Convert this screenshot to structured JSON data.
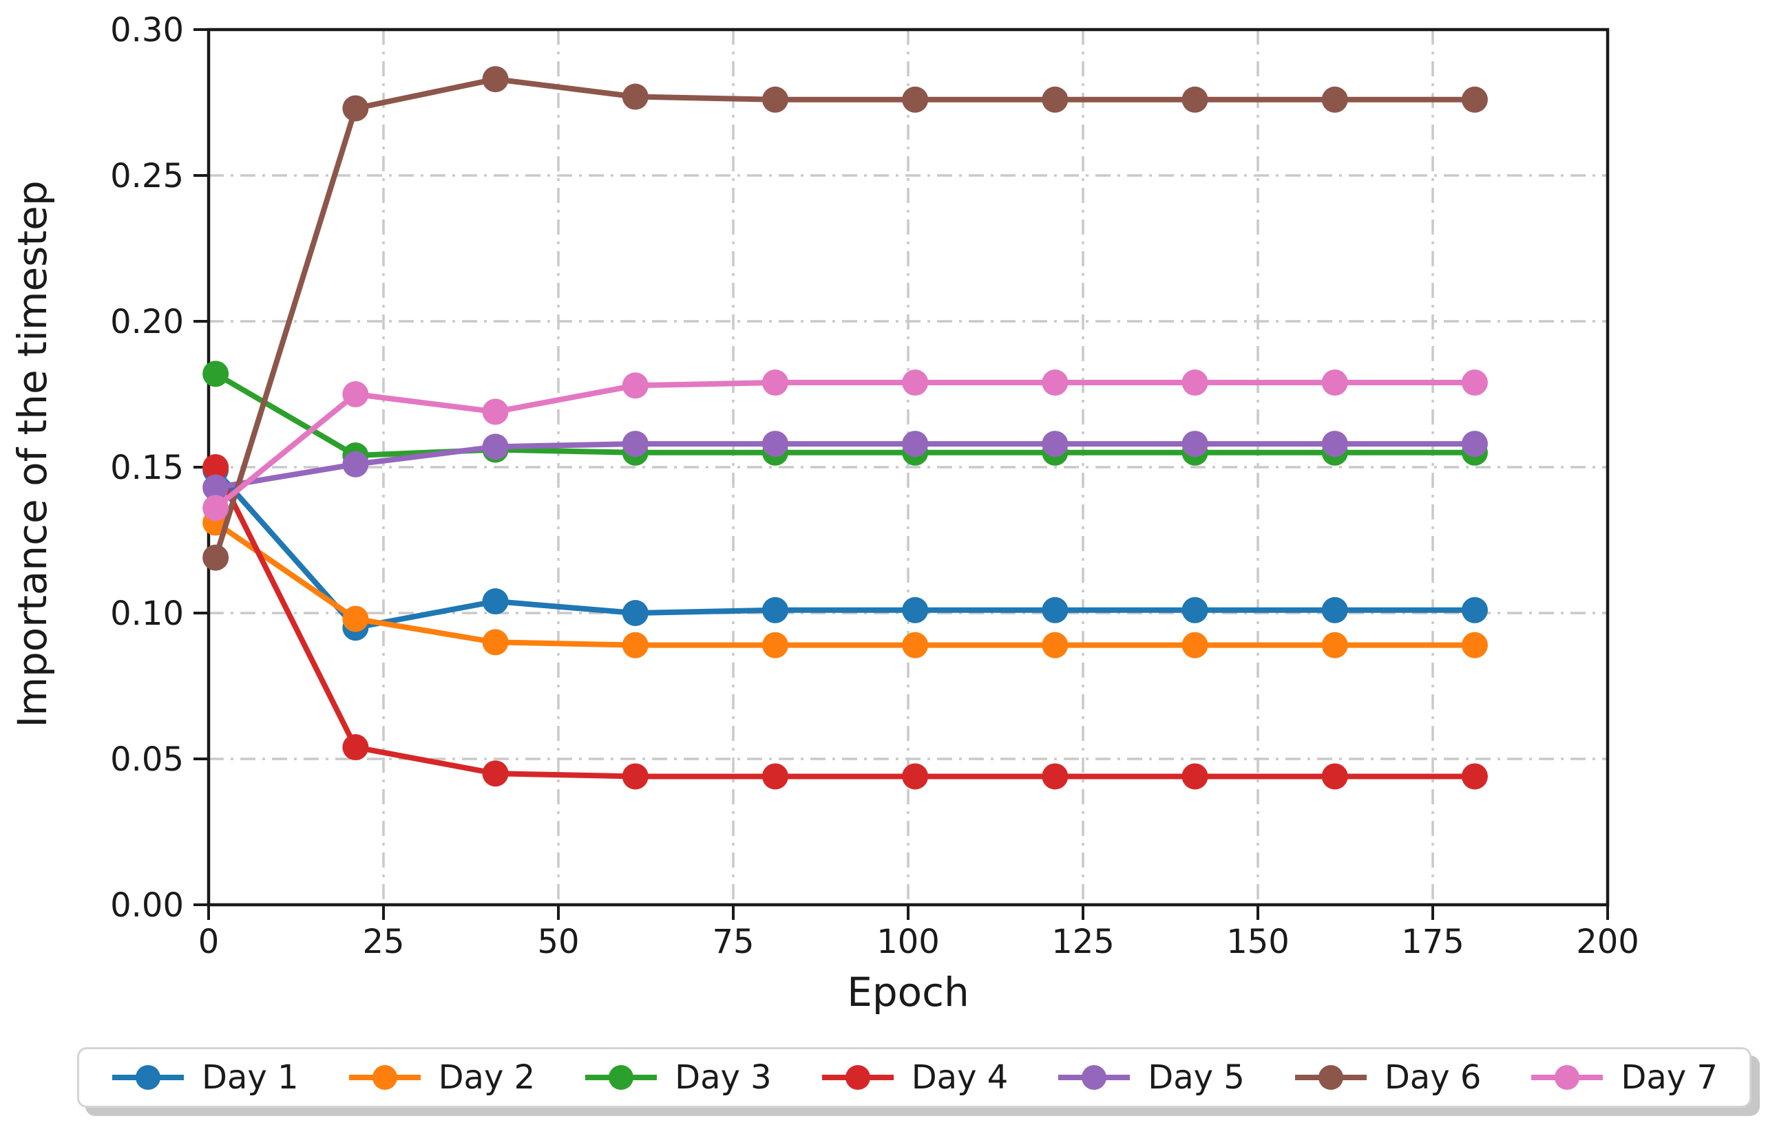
{
  "figure": {
    "background": "#ffffff",
    "text_color": "#1a1a1a",
    "spine_color": "#1a1a1a",
    "grid_color": "#c9c9c9"
  },
  "chart_data": {
    "type": "line",
    "title": "",
    "xlabel": "Epoch",
    "ylabel": "Importance of the timestep",
    "xlim": [
      0,
      200
    ],
    "ylim": [
      0,
      0.3
    ],
    "xticks": [
      0,
      25,
      50,
      75,
      100,
      125,
      150,
      175,
      200
    ],
    "yticks": [
      0.0,
      0.05,
      0.1,
      0.15,
      0.2,
      0.25,
      0.3
    ],
    "grid": "dash-dot both axes, light gray",
    "legend_position": "bottom, horizontal, boxed with shadow",
    "marker": "filled circle",
    "x": [
      1,
      21,
      41,
      61,
      81,
      101,
      121,
      141,
      161,
      181
    ],
    "series": [
      {
        "name": "Day 1",
        "color": "#1f77b4",
        "values": [
          0.149,
          0.095,
          0.104,
          0.1,
          0.101,
          0.101,
          0.101,
          0.101,
          0.101,
          0.101
        ]
      },
      {
        "name": "Day 2",
        "color": "#ff7f0e",
        "values": [
          0.131,
          0.098,
          0.09,
          0.089,
          0.089,
          0.089,
          0.089,
          0.089,
          0.089,
          0.089
        ]
      },
      {
        "name": "Day 3",
        "color": "#2ca02c",
        "values": [
          0.182,
          0.154,
          0.156,
          0.155,
          0.155,
          0.155,
          0.155,
          0.155,
          0.155,
          0.155
        ]
      },
      {
        "name": "Day 4",
        "color": "#d62728",
        "values": [
          0.15,
          0.054,
          0.045,
          0.044,
          0.044,
          0.044,
          0.044,
          0.044,
          0.044,
          0.044
        ]
      },
      {
        "name": "Day 5",
        "color": "#9467bd",
        "values": [
          0.143,
          0.151,
          0.157,
          0.158,
          0.158,
          0.158,
          0.158,
          0.158,
          0.158,
          0.158
        ]
      },
      {
        "name": "Day 6",
        "color": "#8c564b",
        "values": [
          0.119,
          0.273,
          0.283,
          0.277,
          0.276,
          0.276,
          0.276,
          0.276,
          0.276,
          0.276
        ]
      },
      {
        "name": "Day 7",
        "color": "#e377c2",
        "values": [
          0.136,
          0.175,
          0.169,
          0.178,
          0.179,
          0.179,
          0.179,
          0.179,
          0.179,
          0.179
        ]
      }
    ]
  }
}
